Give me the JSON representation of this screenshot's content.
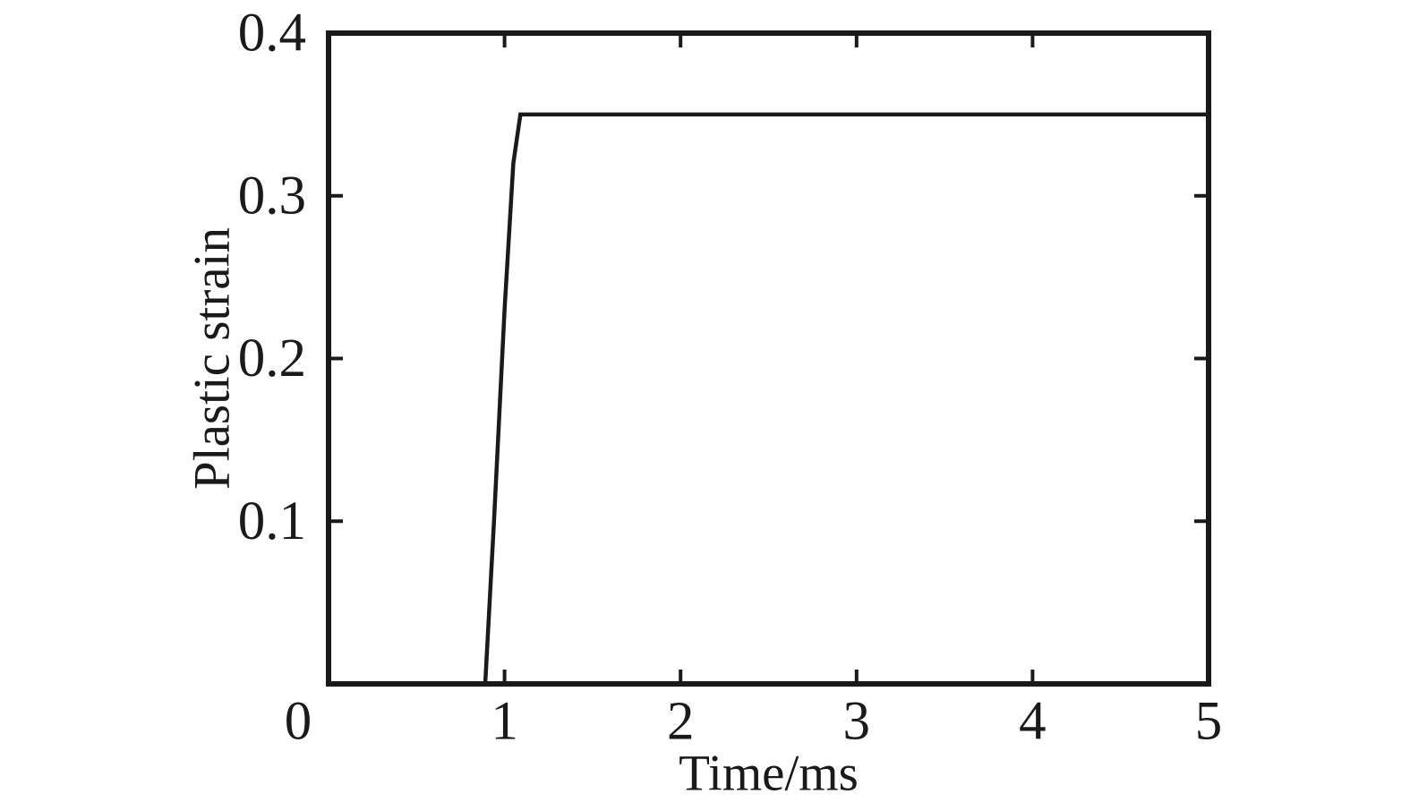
{
  "figure": {
    "title": "",
    "background_color": "#ffffff"
  },
  "chart_data": {
    "type": "line",
    "title": "",
    "xlabel": "Time/ms",
    "ylabel": "Plastic strain",
    "xlim": [
      0,
      5
    ],
    "ylim": [
      0,
      0.4
    ],
    "x_ticks": [
      0,
      1,
      2,
      3,
      4,
      5
    ],
    "x_tick_labels": [
      "0",
      "1",
      "2",
      "3",
      "4",
      "5"
    ],
    "y_ticks": [
      0.1,
      0.2,
      0.3,
      0.4
    ],
    "y_tick_labels": [
      "0.1",
      "0.2",
      "0.3",
      "0.4"
    ],
    "grid": false,
    "box": true,
    "tick_direction": "in",
    "legend": "none",
    "colors": {
      "line": "#1a1a1a",
      "axis": "#1a1a1a",
      "background": "#ffffff"
    },
    "series": [
      {
        "name": "plastic-strain",
        "points": [
          [
            0,
            0
          ],
          [
            0.89,
            0
          ],
          [
            0.94,
            0.1
          ],
          [
            1.0,
            0.23
          ],
          [
            1.05,
            0.32
          ],
          [
            1.09,
            0.35
          ],
          [
            5,
            0.35
          ]
        ]
      }
    ]
  }
}
